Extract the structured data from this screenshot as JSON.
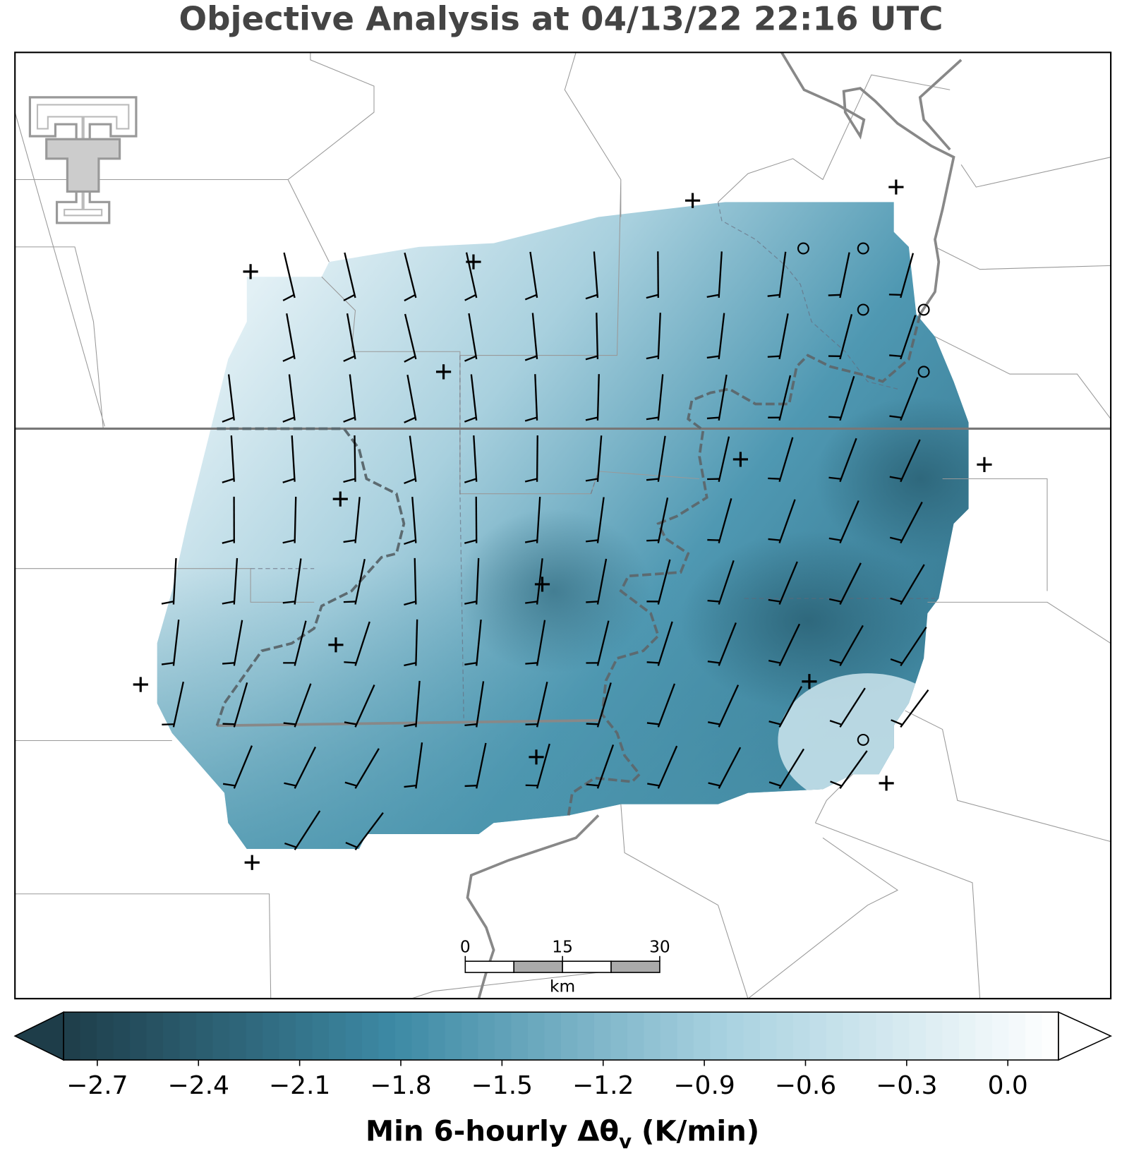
{
  "title": "Objective Analysis at 04/13/22 22:16 UTC",
  "colorbar": {
    "clim": [
      -2.8,
      0.15
    ],
    "ticks": [
      {
        "value": -2.7,
        "label": "−2.7"
      },
      {
        "value": -2.4,
        "label": "−2.4"
      },
      {
        "value": -2.1,
        "label": "−2.1"
      },
      {
        "value": -1.8,
        "label": "−1.8"
      },
      {
        "value": -1.5,
        "label": "−1.5"
      },
      {
        "value": -1.2,
        "label": "−1.2"
      },
      {
        "value": -0.9,
        "label": "−0.9"
      },
      {
        "value": -0.6,
        "label": "−0.6"
      },
      {
        "value": -0.3,
        "label": "−0.3"
      },
      {
        "value": 0,
        "label": "0.0"
      }
    ],
    "colors": [
      "#1e3d49",
      "#3d8aa5",
      "#a9d2e0",
      "#ffffff"
    ],
    "label": {
      "main": "Min 6-hourly Δθ",
      "subscript": "v",
      "suffix": " (K/min)"
    }
  },
  "scale_bar": {
    "ticks": [
      0,
      15,
      30
    ],
    "unit": "km"
  }
}
